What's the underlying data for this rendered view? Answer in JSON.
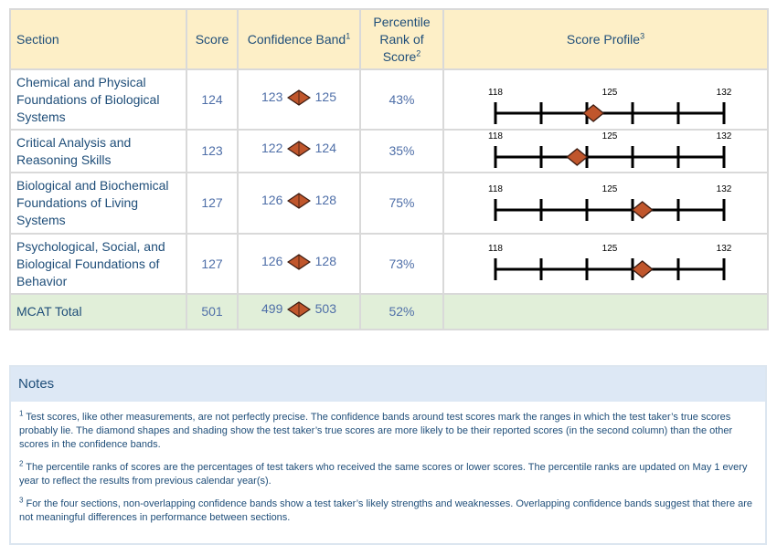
{
  "table": {
    "headers": {
      "section": "Section",
      "score": "Score",
      "band": "Confidence Band",
      "band_sup": "1",
      "percentile_line1": "Percentile",
      "percentile_line2": "Rank of",
      "percentile_line3": "Score",
      "percentile_sup": "2",
      "profile": "Score Profile",
      "profile_sup": "3"
    },
    "rows": [
      {
        "section": "Chemical and Physical Foundations of Biological Systems",
        "score": "124",
        "band_low": "123",
        "band_high": "125",
        "percentile": "43%",
        "profile_score": 124
      },
      {
        "section": "Critical Analysis and Reasoning Skills",
        "score": "123",
        "band_low": "122",
        "band_high": "124",
        "percentile": "35%",
        "profile_score": 123
      },
      {
        "section": "Biological and Biochemical Foundations of Living Systems",
        "score": "127",
        "band_low": "126",
        "band_high": "128",
        "percentile": "75%",
        "profile_score": 127
      },
      {
        "section": "Psychological, Social, and Biological Foundations of Behavior",
        "score": "127",
        "band_low": "126",
        "band_high": "128",
        "percentile": "73%",
        "profile_score": 127
      }
    ],
    "total": {
      "section": "MCAT Total",
      "score": "501",
      "band_low": "499",
      "band_high": "503",
      "percentile": "52%"
    },
    "profile_scale": {
      "min": "118",
      "mid": "125",
      "max": "132"
    }
  },
  "notes": {
    "title": "Notes",
    "items": [
      {
        "num": "1",
        "text": " Test scores, like other measurements, are not perfectly precise. The confidence bands around test scores mark the ranges in which the test taker’s true scores probably lie. The diamond shapes and shading show the test taker’s true scores are more likely to be their reported scores (in the second column) than the other scores in the confidence bands."
      },
      {
        "num": "2",
        "text": "  The percentile ranks of scores are the percentages of test takers who received the same scores or lower scores. The percentile ranks are updated on May 1 every year to reflect the results from previous calendar year(s)."
      },
      {
        "num": "3",
        "text": " For the four sections, non-overlapping confidence bands show a test taker’s likely strengths and weaknesses. Overlapping confidence bands suggest that there are not meaningful differences in performance between sections."
      }
    ]
  },
  "colors": {
    "header_bg": "#fdefc7",
    "total_bg": "#e1efd9",
    "notes_head_bg": "#dde8f5",
    "diamond_fill": "#c0562c",
    "diamond_stroke": "#3a1a10",
    "text": "#1f4e79"
  }
}
